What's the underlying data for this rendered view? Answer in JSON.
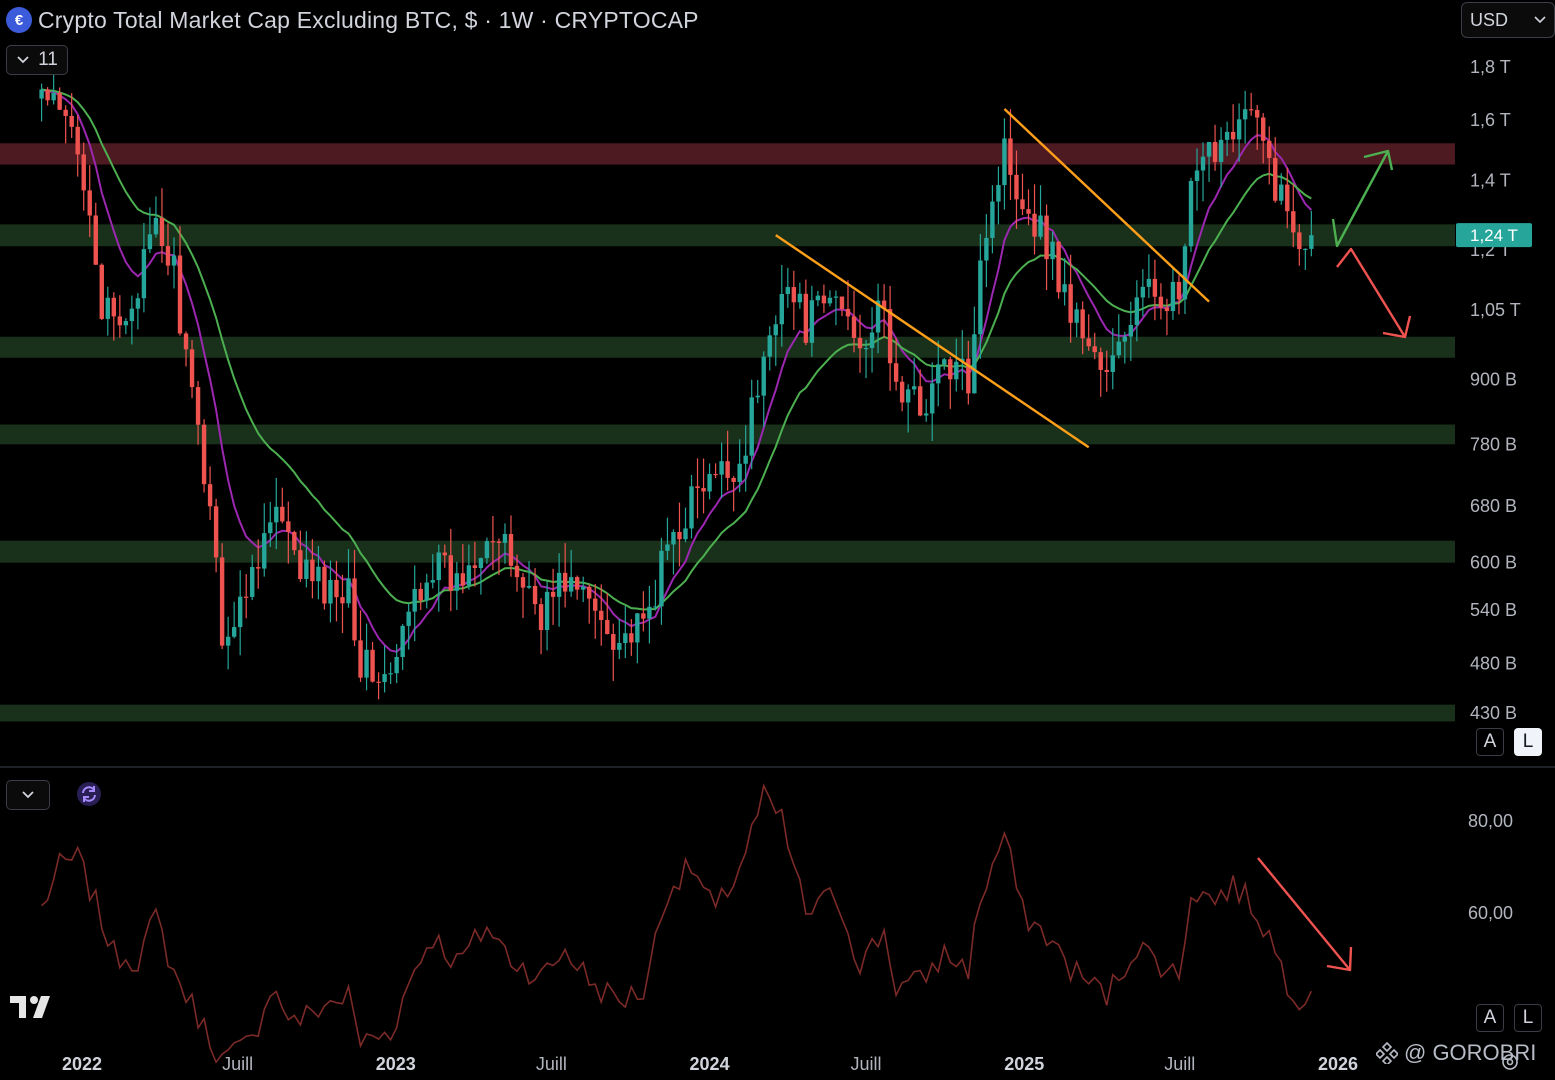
{
  "header": {
    "logo_glyph": "€",
    "title": "Crypto Total Market Cap Excluding BTC, $ · 1W · CRYPTOCAP",
    "indicator_count": "11",
    "currency": "USD"
  },
  "price_scale_buttons": {
    "auto": "A",
    "log": "L"
  },
  "rsi_scale_buttons": {
    "auto": "A",
    "log": "L"
  },
  "watermark": "@ GOROBRI",
  "colors": {
    "up": "#26a69a",
    "down": "#ef5350",
    "ema_fast": "#9c27b0",
    "ema_slow": "#4caf50",
    "trendline": "#ff9f1a",
    "resistance_zone": "#5c1f27",
    "support_zone": "#1d3a1f",
    "rsi_line": "#7b2a28",
    "last_price_badge": "#26a69a"
  },
  "chart_data": [
    {
      "type": "candlestick",
      "title": "Crypto Total Market Cap Excluding BTC, $ · 1W · CRYPTOCAP",
      "scale": "log",
      "ylim": [
        400000000000,
        1950000000000
      ],
      "y_tick_labels": [
        "1,8 T",
        "1,6 T",
        "1,4 T",
        "1,2 T",
        "1,05 T",
        "900 B",
        "780 B",
        "680 B",
        "600 B",
        "540 B",
        "480 B",
        "430 B"
      ],
      "x_tick_labels": [
        "2022",
        "Juill",
        "2023",
        "Juill",
        "2024",
        "Juill",
        "2025",
        "Juill",
        "2026"
      ],
      "last_price_label": "1,24 T",
      "anchor_points_billions": [
        [
          "2021-11-15",
          1700
        ],
        [
          "2021-12-20",
          1550
        ],
        [
          "2022-01-10",
          1350
        ],
        [
          "2022-01-24",
          1050
        ],
        [
          "2022-02-14",
          1000
        ],
        [
          "2022-03-28",
          1250
        ],
        [
          "2022-04-18",
          1150
        ],
        [
          "2022-05-09",
          850
        ],
        [
          "2022-05-30",
          690
        ],
        [
          "2022-06-13",
          520
        ],
        [
          "2022-06-27",
          520
        ],
        [
          "2022-07-25",
          620
        ],
        [
          "2022-08-15",
          670
        ],
        [
          "2022-09-05",
          600
        ],
        [
          "2022-10-17",
          560
        ],
        [
          "2022-11-07",
          580
        ],
        [
          "2022-11-21",
          480
        ],
        [
          "2022-12-26",
          460
        ],
        [
          "2023-01-23",
          560
        ],
        [
          "2023-02-13",
          600
        ],
        [
          "2023-03-13",
          570
        ],
        [
          "2023-04-17",
          650
        ],
        [
          "2023-05-15",
          600
        ],
        [
          "2023-06-19",
          540
        ],
        [
          "2023-07-17",
          580
        ],
        [
          "2023-08-21",
          540
        ],
        [
          "2023-09-18",
          510
        ],
        [
          "2023-10-16",
          515
        ],
        [
          "2023-11-13",
          620
        ],
        [
          "2023-12-11",
          690
        ],
        [
          "2024-01-08",
          720
        ],
        [
          "2024-02-05",
          750
        ],
        [
          "2024-03-04",
          930
        ],
        [
          "2024-03-25",
          1130
        ],
        [
          "2024-04-22",
          1020
        ],
        [
          "2024-05-27",
          1080
        ],
        [
          "2024-06-24",
          990
        ],
        [
          "2024-07-22",
          1040
        ],
        [
          "2024-08-05",
          880
        ],
        [
          "2024-09-02",
          850
        ],
        [
          "2024-09-30",
          930
        ],
        [
          "2024-10-28",
          900
        ],
        [
          "2024-11-11",
          1200
        ],
        [
          "2024-12-09",
          1500
        ],
        [
          "2024-12-30",
          1350
        ],
        [
          "2025-01-27",
          1230
        ],
        [
          "2025-02-24",
          1050
        ],
        [
          "2025-03-17",
          980
        ],
        [
          "2025-04-07",
          900
        ],
        [
          "2025-05-12",
          1070
        ],
        [
          "2025-06-09",
          1100
        ],
        [
          "2025-06-30",
          1070
        ],
        [
          "2025-07-14",
          1350
        ],
        [
          "2025-08-11",
          1520
        ],
        [
          "2025-09-01",
          1600
        ],
        [
          "2025-09-22",
          1620
        ],
        [
          "2025-10-13",
          1450
        ],
        [
          "2025-11-03",
          1300
        ],
        [
          "2025-11-17",
          1240
        ],
        [
          "2025-12-01",
          1240
        ]
      ],
      "moving_averages": [
        {
          "name": "",
          "color": "#9c27b0",
          "period_weeks": 9
        },
        {
          "name": "",
          "color": "#4caf50",
          "period_weeks": 21
        }
      ],
      "zones_billions": [
        {
          "kind": "resistance",
          "from": 1450,
          "to": 1520
        },
        {
          "kind": "support",
          "from": 1210,
          "to": 1270
        },
        {
          "kind": "support",
          "from": 945,
          "to": 990
        },
        {
          "kind": "support",
          "from": 780,
          "to": 815
        },
        {
          "kind": "support",
          "from": 600,
          "to": 630
        },
        {
          "kind": "support",
          "from": 422,
          "to": 438
        }
      ],
      "trendlines_billions": [
        {
          "from": [
            "2024-03-18",
            1240
          ],
          "to": [
            "2025-03-17",
            775
          ]
        },
        {
          "from": [
            "2024-12-09",
            1640
          ],
          "to": [
            "2025-08-04",
            1070
          ]
        }
      ]
    },
    {
      "type": "line",
      "title": "",
      "y_tick_labels": [
        "80,00",
        "60,00"
      ],
      "ylim": [
        30,
        90
      ],
      "x_tick_labels": [
        "2022",
        "Juill",
        "2023",
        "Juill",
        "2024",
        "Juill",
        "2025",
        "Juill",
        "2026"
      ],
      "anchor_points": [
        [
          "2021-11-15",
          61
        ],
        [
          "2021-12-06",
          70
        ],
        [
          "2021-12-27",
          72
        ],
        [
          "2022-01-17",
          62
        ],
        [
          "2022-02-07",
          51
        ],
        [
          "2022-03-07",
          50
        ],
        [
          "2022-03-28",
          59
        ],
        [
          "2022-04-18",
          47
        ],
        [
          "2022-05-09",
          40
        ],
        [
          "2022-06-13",
          28
        ],
        [
          "2022-07-18",
          32
        ],
        [
          "2022-08-08",
          44
        ],
        [
          "2022-09-05",
          36
        ],
        [
          "2022-10-10",
          40
        ],
        [
          "2022-11-07",
          42
        ],
        [
          "2022-11-21",
          32
        ],
        [
          "2022-12-26",
          34
        ],
        [
          "2023-01-23",
          48
        ],
        [
          "2023-02-13",
          55
        ],
        [
          "2023-03-13",
          49
        ],
        [
          "2023-04-17",
          57
        ],
        [
          "2023-05-15",
          50
        ],
        [
          "2023-06-19",
          46
        ],
        [
          "2023-07-17",
          52
        ],
        [
          "2023-08-21",
          44
        ],
        [
          "2023-09-18",
          41
        ],
        [
          "2023-10-16",
          43
        ],
        [
          "2023-11-13",
          65
        ],
        [
          "2023-12-11",
          70
        ],
        [
          "2024-01-08",
          60
        ],
        [
          "2024-02-05",
          70
        ],
        [
          "2024-03-04",
          85
        ],
        [
          "2024-03-25",
          80
        ],
        [
          "2024-04-22",
          60
        ],
        [
          "2024-05-27",
          64
        ],
        [
          "2024-06-24",
          49
        ],
        [
          "2024-07-22",
          56
        ],
        [
          "2024-08-05",
          44
        ],
        [
          "2024-09-02",
          45
        ],
        [
          "2024-09-30",
          51
        ],
        [
          "2024-10-28",
          48
        ],
        [
          "2024-11-11",
          63
        ],
        [
          "2024-12-09",
          77
        ],
        [
          "2024-12-30",
          60
        ],
        [
          "2025-01-27",
          55
        ],
        [
          "2025-02-24",
          48
        ],
        [
          "2025-03-17",
          45
        ],
        [
          "2025-04-07",
          42
        ],
        [
          "2025-05-12",
          53
        ],
        [
          "2025-06-09",
          49
        ],
        [
          "2025-06-30",
          46
        ],
        [
          "2025-07-14",
          65
        ],
        [
          "2025-08-11",
          63
        ],
        [
          "2025-09-01",
          66
        ],
        [
          "2025-09-22",
          62
        ],
        [
          "2025-10-13",
          55
        ],
        [
          "2025-11-03",
          45
        ],
        [
          "2025-11-17",
          42
        ],
        [
          "2025-12-01",
          43
        ]
      ]
    }
  ]
}
